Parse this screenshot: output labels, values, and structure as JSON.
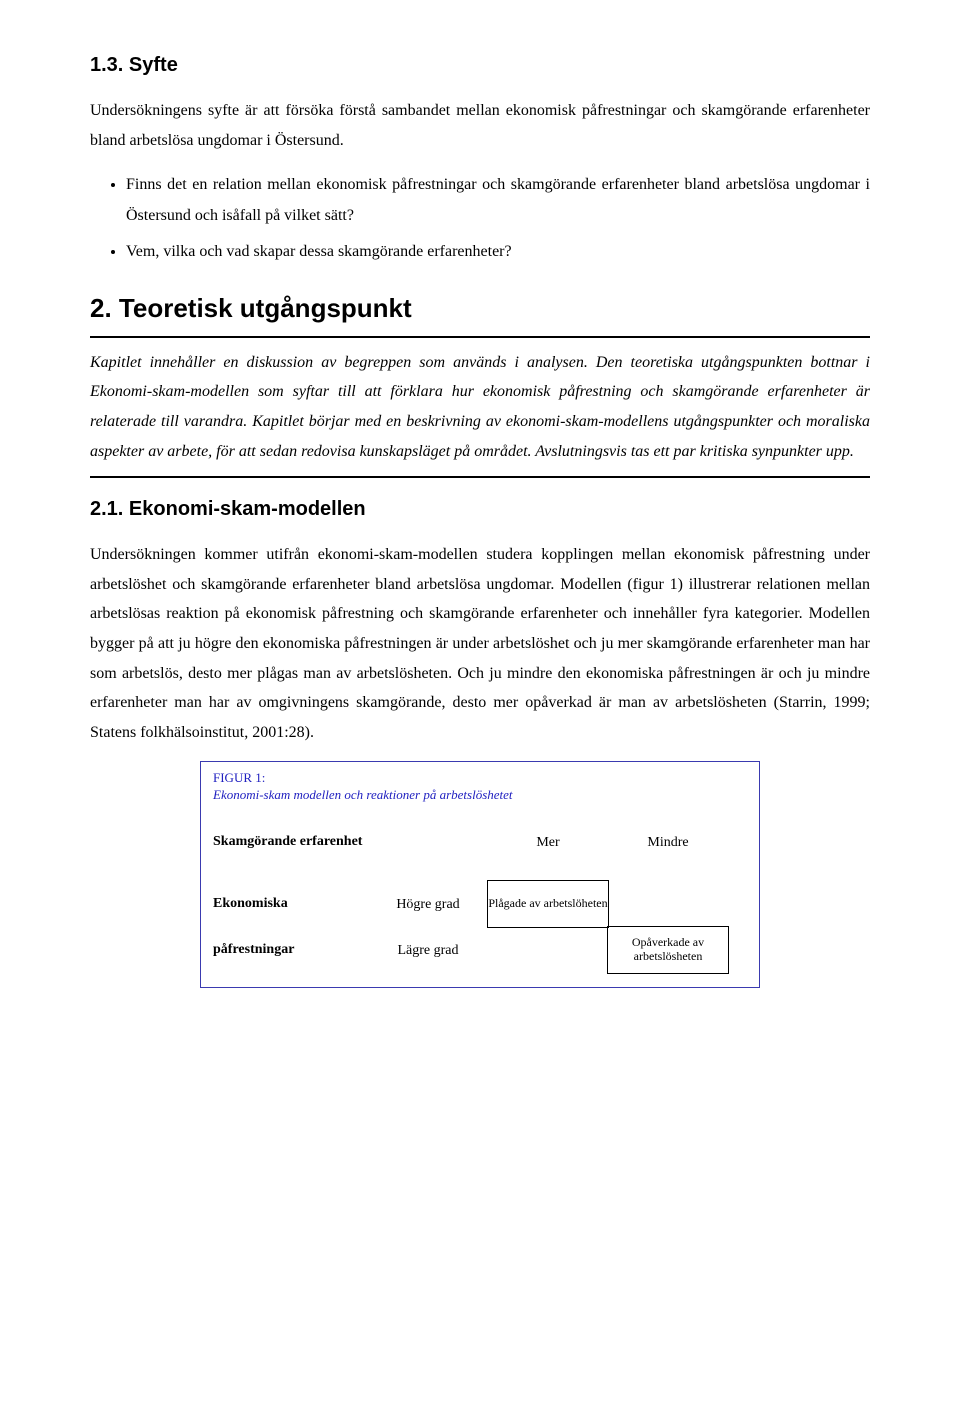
{
  "section13": {
    "heading": "1.3. Syfte",
    "para": "Undersökningens syfte är att försöka förstå sambandet mellan ekonomisk påfrestningar och skamgörande erfarenheter bland arbetslösa ungdomar i Östersund.",
    "bullets": [
      "Finns det en relation mellan ekonomisk påfrestningar och skamgörande erfarenheter bland arbetslösa ungdomar i Östersund och isåfall på vilket sätt?",
      "Vem, vilka och vad skapar dessa skamgörande erfarenheter?"
    ]
  },
  "section2": {
    "heading": "2. Teoretisk utgångspunkt",
    "intro_italic": "Kapitlet innehåller en diskussion av begreppen som används i analysen. Den teoretiska utgångspunkten bottnar i Ekonomi-skam-modellen som syftar till att förklara hur ekonomisk påfrestning och skamgörande erfarenheter är relaterade till varandra. Kapitlet börjar med en beskrivning av ekonomi-skam-modellens utgångspunkter och moraliska aspekter av arbete, för att sedan redovisa kunskapsläget på området. Avslutningsvis tas ett par kritiska synpunkter upp."
  },
  "section21": {
    "heading": "2.1. Ekonomi-skam-modellen",
    "para": "Undersökningen kommer utifrån ekonomi-skam-modellen studera kopplingen mellan ekonomisk påfrestning under arbetslöshet och skamgörande erfarenheter bland arbetslösa ungdomar. Modellen (figur 1) illustrerar relationen mellan arbetslösas reaktion på ekonomisk påfrestning och skamgörande erfarenheter och innehåller fyra kategorier. Modellen bygger på att ju högre den ekonomiska påfrestningen är under arbetslöshet och ju mer skamgörande erfarenheter man har som arbetslös, desto mer plågas man av arbetslösheten. Och ju mindre den ekonomiska påfrestningen är och ju mindre erfarenheter man har av omgivningens skamgörande, desto mer opåverkad är man av arbetslösheten (Starrin, 1999; Statens folkhälsoinstitut, 2001:28)."
  },
  "figure": {
    "label": "FIGUR 1:",
    "desc": "Ekonomi-skam modellen och reaktioner på arbetslöshetet",
    "row_axis": "Skamgörande erfarenhet",
    "col_axis_line1": "Ekonomiska",
    "col_axis_line2": "påfrestningar",
    "cols": [
      "Mer",
      "Mindre"
    ],
    "grades": [
      "Högre grad",
      "Lägre grad"
    ],
    "cells": {
      "top_left": "Plågade av arbetslöheten",
      "top_right": "",
      "bot_left": "",
      "bot_right": "Opåverkade av arbetslösheten"
    },
    "colors": {
      "border": "#3a3ab0",
      "title_text": "#2020c0",
      "text": "#000000",
      "background": "#ffffff"
    },
    "font_sizes": {
      "body": 16,
      "h2": 20,
      "h1": 26,
      "fig_title": 13,
      "fig_body": 14,
      "fig_cell": 12
    }
  }
}
